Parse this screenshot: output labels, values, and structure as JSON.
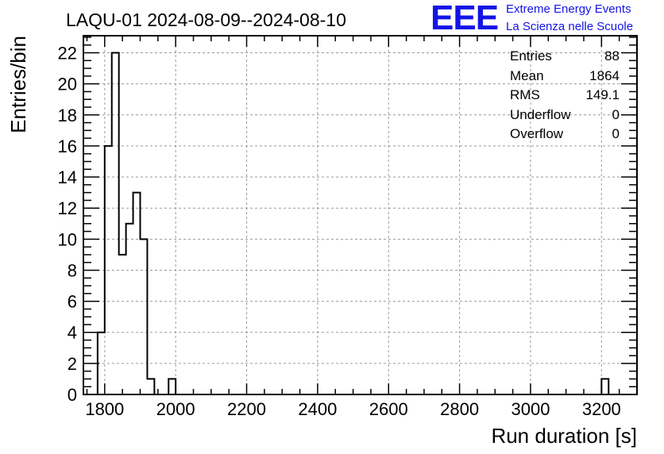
{
  "title": "LAQU-01 2024-08-09--2024-08-10",
  "logo": {
    "text": "EEE",
    "line1": "Extreme Energy Events",
    "line2": "La Scienza nelle Scuole",
    "color": "#1414e6"
  },
  "stats": [
    {
      "label": "Entries",
      "value": "88"
    },
    {
      "label": "Mean",
      "value": "1864"
    },
    {
      "label": "RMS",
      "value": "149.1"
    },
    {
      "label": "Underflow",
      "value": "0"
    },
    {
      "label": "Overflow",
      "value": "0"
    }
  ],
  "chart_data": {
    "type": "histogram",
    "title": "LAQU-01 2024-08-09--2024-08-10",
    "xlabel": "Run duration [s]",
    "ylabel": "Entries/bin",
    "xlim": [
      1740,
      3300
    ],
    "ylim": [
      0,
      23.1
    ],
    "xticks": [
      1800,
      2000,
      2200,
      2400,
      2600,
      2800,
      3000,
      3200
    ],
    "yticks": [
      0,
      2,
      4,
      6,
      8,
      10,
      12,
      14,
      16,
      18,
      20,
      22
    ],
    "grid": true,
    "line_color": "#000000",
    "bins": [
      {
        "x0": 1780,
        "x1": 1800,
        "count": 4
      },
      {
        "x0": 1800,
        "x1": 1820,
        "count": 16
      },
      {
        "x0": 1820,
        "x1": 1840,
        "count": 22
      },
      {
        "x0": 1840,
        "x1": 1860,
        "count": 9
      },
      {
        "x0": 1860,
        "x1": 1880,
        "count": 11
      },
      {
        "x0": 1880,
        "x1": 1900,
        "count": 13
      },
      {
        "x0": 1900,
        "x1": 1920,
        "count": 10
      },
      {
        "x0": 1920,
        "x1": 1940,
        "count": 1
      },
      {
        "x0": 1980,
        "x1": 2000,
        "count": 1
      },
      {
        "x0": 3200,
        "x1": 3220,
        "count": 1
      }
    ]
  }
}
